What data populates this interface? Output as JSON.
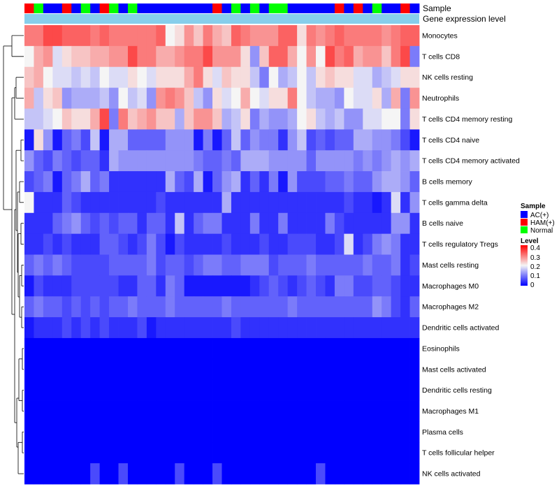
{
  "chart_data": {
    "type": "heatmap",
    "annotation_labels": [
      "Sample",
      "Gene expression level"
    ],
    "rows": [
      "Monocytes",
      "T cells CD8",
      "NK cells resting",
      "Neutrophils",
      "T cells CD4 memory resting",
      "T cells CD4 naive",
      "T cells CD4 memory activated",
      "B cells memory",
      "T cells gamma delta",
      "B cells naive",
      "T cells regulatory  Tregs",
      "Mast cells resting",
      "Macrophages M0",
      "Macrophages M2",
      "Dendritic cells activated",
      "Eosinophils",
      "Mast cells activated",
      "Dendritic cells resting",
      "Macrophages M1",
      "Plasma cells",
      "T cells follicular helper",
      "NK cells activated"
    ],
    "sample_groups": [
      "AC(+)",
      "HAM(+)",
      "Normal"
    ],
    "sample_annotation": "HNAAHANAHNANAAAAAAAAHANANANNAAAAAHAHANAAHA",
    "values": [
      "PPRRQQQPQPPPPPQKLOMPNMQPOOOQQLPOPQPPPPOPQQ",
      "KNOJLMMNNOORPPNNOPPROOOLGMQQNKOKRPQNOOMPRF",
      "MNKJJIJIKJJLKJLLLNPLJMLLIFKHIKILMLLJJHIJLL",
      "NILMGHHHIGKIJGOPOMIGLJKNKJLLPKIHHGKJJLHNFO",
      "IIJKMLLNRFPMNOMMHMOOMHILFHGGHKLIHIGGJJKKFL",
      "BLGBEFDIBHHEEEEGGGBFBEIEGFFCGIDEDEEHHGGFDB",
      "GEDFEDEECHGGGGGGGGFEEFEHHHGGGGEGGGGFGFGHGH",
      "DEFBEFHEFCCCCCCHEDHBEGHCECFBGDDDEEFEEGHHGE",
      "KCCCEDCCCCCCCCDCCCCCCHCCCCCCCCCCCCDCCBCJCG",
      "CCCEFGEDEDEECEECICEFFCCCFCCFCCCCFDCCCCCGGC",
      "CCDCDCCCEEDCDFDBDCCCCDCCCDCCDDDCCDJCDFGFCC",
      "EFEFEDDDDEEEEFDEEDEFFEEFFFDEEEFEEEEEFEEFCD",
      "BDCCCDDDDDCCEECFEBBBBBBBCDEDCDEDCFFDDEEDCC",
      "EFEEDEDEDEEFEEEFEEEEEFEEEEEEFEEEEEEEEGFDCE",
      "BCCCDCDCDCCCDBCCCCCCCCDCCCCCCCCCCCCCCCCCCC",
      "AAAAAAAAAAAAAAAAAAAAAAAAAAAAAAAAAAAAAAAAAA",
      "AAAAAAAAAAAAAAAAAAAAAAAAAAAAAAAAAAAAAAAAAA",
      "AAAAAAAAAAAAAAAAAAAAAAAAAAAAAAAAAAAAAAAAAA",
      "AAAAAAAAAAAAAAAAAAAAAAAAAAAAAAAAAAAAAAAAAA",
      "AAAAAAAAAAAAAAAAAAAAAAAAAAAAAAAAAAAAAAAAAA",
      "AAAAAAAAAAAAAAAAAAAAAAAAAAAAAAAAAAAAAAAAAA",
      "AAAAAAADAADAAAAADAAADAAAAAAAAAADAAAAAAAAAA"
    ],
    "value_encoding": "A=0.00, each letter +0.02 (R=0.34)",
    "color_scale": {
      "min": 0,
      "mid": 0.2,
      "max": 0.4,
      "low": "#0000ff",
      "mid_color": "#f5f5f5",
      "high": "#ff0000"
    }
  },
  "legend": {
    "sample_title": "Sample",
    "sample_items": [
      {
        "label": "AC(+)",
        "color": "#0000ff"
      },
      {
        "label": "HAM(+)",
        "color": "#ff0000"
      },
      {
        "label": "Normal",
        "color": "#00ff00"
      }
    ],
    "level_title": "Level",
    "level_ticks": [
      "0.4",
      "0.3",
      "0.2",
      "0.1",
      "0"
    ]
  },
  "colors": {
    "annotation_bar": "#87ceeb"
  }
}
